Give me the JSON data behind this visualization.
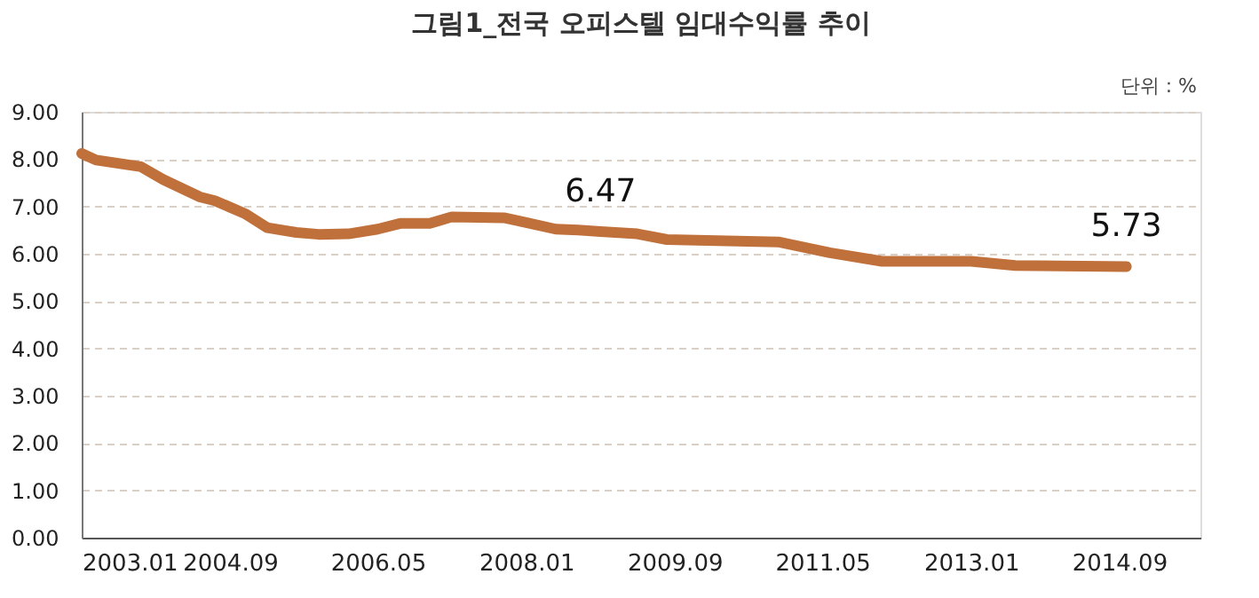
{
  "chart_data": {
    "type": "line",
    "title": "그림1_전국 오피스텔 임대수익률 추이",
    "x": [
      "2003-01",
      "2003-03",
      "2003-09",
      "2003-12",
      "2004-05",
      "2004-07",
      "2004-11",
      "2005-02",
      "2005-06",
      "2005-09",
      "2006-01",
      "2006-05",
      "2006-08",
      "2006-12",
      "2007-03",
      "2007-10",
      "2008-01",
      "2008-05",
      "2008-08",
      "2008-11",
      "2009-04",
      "2009-08",
      "2010-11",
      "2011-06",
      "2012-01",
      "2013-01",
      "2013-07",
      "2014-10"
    ],
    "series": [
      {
        "color": "#c0703a",
        "values": [
          8.12,
          7.98,
          7.84,
          7.57,
          7.2,
          7.12,
          6.85,
          6.55,
          6.45,
          6.41,
          6.42,
          6.52,
          6.64,
          6.64,
          6.78,
          6.76,
          6.66,
          6.52,
          6.5,
          6.47,
          6.42,
          6.3,
          6.25,
          6.02,
          5.84,
          5.84,
          5.75,
          5.73
        ]
      }
    ],
    "xlim": [
      "2003-01",
      "2015-08"
    ],
    "xticks": [
      {
        "value": "2003-01",
        "label": "2003.01"
      },
      {
        "value": "2004-09",
        "label": "2004.09"
      },
      {
        "value": "2006-05",
        "label": "2006.05"
      },
      {
        "value": "2008-01",
        "label": "2008.01"
      },
      {
        "value": "2009-09",
        "label": "2009.09"
      },
      {
        "value": "2011-05",
        "label": "2011.05"
      },
      {
        "value": "2013-01",
        "label": "2013.01"
      },
      {
        "value": "2014-09",
        "label": "2014.09"
      }
    ],
    "ylim": [
      0,
      9
    ],
    "yticks": [
      {
        "value": 0,
        "label": "0.00"
      },
      {
        "value": 1,
        "label": "1.00"
      },
      {
        "value": 2,
        "label": "2.00"
      },
      {
        "value": 3,
        "label": "3.00"
      },
      {
        "value": 4,
        "label": "4.00"
      },
      {
        "value": 5,
        "label": "5.00"
      },
      {
        "value": 6,
        "label": "6.00"
      },
      {
        "value": 7,
        "label": "7.00"
      },
      {
        "value": 8,
        "label": "8.00"
      },
      {
        "value": 9,
        "label": "9.00"
      }
    ],
    "grid": "y",
    "marker": "none",
    "line_style": "solid",
    "annotations": [
      "단위 : %",
      {
        "text": "6.47",
        "x": "2008-11",
        "y": 6.47
      },
      {
        "text": "5.73",
        "x": "2014-10",
        "y": 5.73
      }
    ]
  }
}
